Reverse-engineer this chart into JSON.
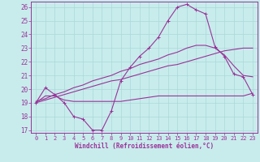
{
  "xlabel": "Windchill (Refroidissement éolien,°C)",
  "background_color": "#c8ecec",
  "grid_color": "#aad8d8",
  "line_color": "#993399",
  "xlim": [
    -0.5,
    23.5
  ],
  "ylim": [
    16.8,
    26.4
  ],
  "yticks": [
    17,
    18,
    19,
    20,
    21,
    22,
    23,
    24,
    25,
    26
  ],
  "xticks": [
    0,
    1,
    2,
    3,
    4,
    5,
    6,
    7,
    8,
    9,
    10,
    11,
    12,
    13,
    14,
    15,
    16,
    17,
    18,
    19,
    20,
    21,
    22,
    23
  ],
  "line1_x": [
    0,
    1,
    2,
    3,
    4,
    5,
    6,
    7,
    8,
    9,
    10,
    11,
    12,
    13,
    14,
    15,
    16,
    17,
    18,
    19,
    20,
    21,
    22,
    23
  ],
  "line1_y": [
    19.0,
    20.1,
    19.6,
    19.0,
    18.0,
    17.8,
    17.0,
    17.0,
    18.4,
    20.6,
    21.6,
    22.4,
    23.0,
    23.8,
    25.0,
    26.0,
    26.2,
    25.8,
    25.5,
    23.1,
    22.4,
    21.1,
    20.9,
    19.6
  ],
  "line2_x": [
    0,
    1,
    2,
    3,
    4,
    5,
    6,
    7,
    8,
    9,
    10,
    11,
    12,
    13,
    14,
    15,
    16,
    17,
    18,
    19,
    20,
    21,
    22,
    23
  ],
  "line2_y": [
    19.0,
    19.2,
    19.4,
    19.6,
    19.8,
    20.0,
    20.2,
    20.4,
    20.6,
    20.7,
    20.9,
    21.1,
    21.3,
    21.5,
    21.7,
    21.8,
    22.0,
    22.2,
    22.4,
    22.6,
    22.8,
    22.9,
    23.0,
    23.0
  ],
  "line3_x": [
    0,
    1,
    2,
    3,
    4,
    5,
    6,
    7,
    8,
    9,
    10,
    11,
    12,
    13,
    14,
    15,
    16,
    17,
    18,
    19,
    20,
    21,
    22,
    23
  ],
  "line3_y": [
    19.1,
    19.3,
    19.6,
    19.8,
    20.1,
    20.3,
    20.6,
    20.8,
    21.0,
    21.3,
    21.5,
    21.8,
    22.0,
    22.2,
    22.5,
    22.7,
    23.0,
    23.2,
    23.2,
    23.0,
    22.5,
    21.7,
    21.0,
    20.9
  ],
  "line4_x": [
    0,
    1,
    2,
    3,
    4,
    5,
    6,
    7,
    8,
    9,
    10,
    11,
    12,
    13,
    14,
    15,
    16,
    17,
    18,
    19,
    20,
    21,
    22,
    23
  ],
  "line4_y": [
    19.0,
    19.5,
    19.5,
    19.2,
    19.1,
    19.1,
    19.1,
    19.1,
    19.1,
    19.1,
    19.2,
    19.3,
    19.4,
    19.5,
    19.5,
    19.5,
    19.5,
    19.5,
    19.5,
    19.5,
    19.5,
    19.5,
    19.5,
    19.7
  ]
}
